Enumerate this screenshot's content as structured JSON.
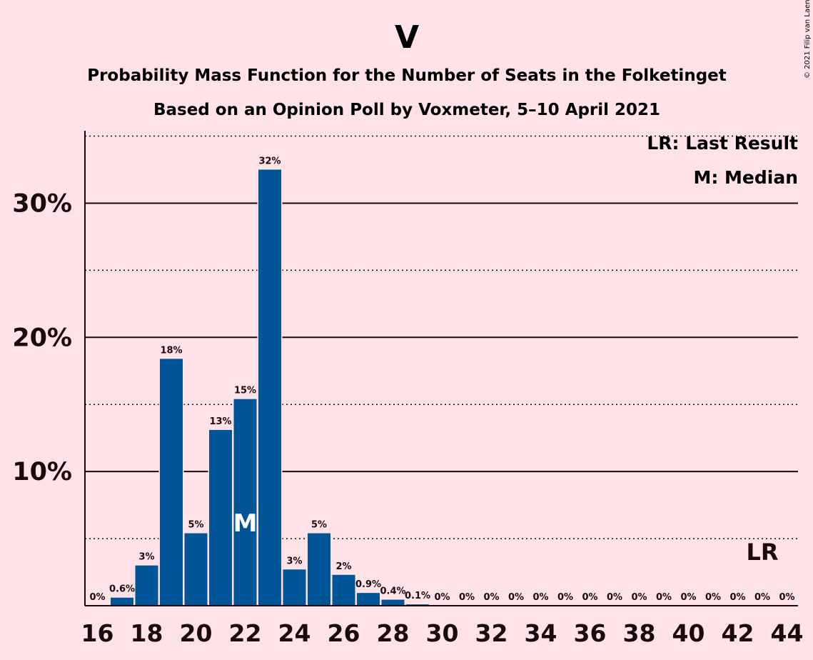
{
  "title": "V",
  "subtitle1": "Probability Mass Function for the Number of Seats in the Folketinget",
  "subtitle2": "Based on an Opinion Poll by Voxmeter, 5–10 April 2021",
  "legend": {
    "last_result": "LR: Last Result",
    "median": "M: Median"
  },
  "copyright": "© 2021 Filip van Laenen",
  "colors": {
    "background": "#FFE3E8",
    "bar": "#005596",
    "text": "#1a0a0e"
  },
  "chart_data": {
    "type": "bar",
    "x": [
      16,
      17,
      18,
      19,
      20,
      21,
      22,
      23,
      24,
      25,
      26,
      27,
      28,
      29,
      30,
      31,
      32,
      33,
      34,
      35,
      36,
      37,
      38,
      39,
      40,
      41,
      42,
      43,
      44
    ],
    "values": [
      0,
      0.6,
      3.0,
      18.4,
      5.4,
      13.1,
      15.4,
      32.5,
      2.7,
      5.4,
      2.3,
      0.95,
      0.45,
      0.1,
      0,
      0,
      0,
      0,
      0,
      0,
      0,
      0,
      0,
      0,
      0,
      0,
      0,
      0,
      0
    ],
    "data_labels": [
      "0%",
      "0.6%",
      "3%",
      "18%",
      "5%",
      "13%",
      "15%",
      "32%",
      "3%",
      "5%",
      "2%",
      "0.9%",
      "0.4%",
      "0.1%",
      "0%",
      "0%",
      "0%",
      "0%",
      "0%",
      "0%",
      "0%",
      "0%",
      "0%",
      "0%",
      "0%",
      "0%",
      "0%",
      "0%",
      "0%"
    ],
    "xticks": [
      16,
      18,
      20,
      22,
      24,
      26,
      28,
      30,
      32,
      34,
      36,
      38,
      40,
      42,
      44
    ],
    "yticks": [
      10,
      20,
      30
    ],
    "ytick_labels": [
      "10%",
      "20%",
      "30%"
    ],
    "ylim": [
      0,
      35.4
    ],
    "median": {
      "x": 22,
      "label": "M"
    },
    "last_result": {
      "x": 43,
      "label": "LR"
    },
    "grid": "solid major lines at 10% steps, dotted minor lines at 5% steps"
  }
}
